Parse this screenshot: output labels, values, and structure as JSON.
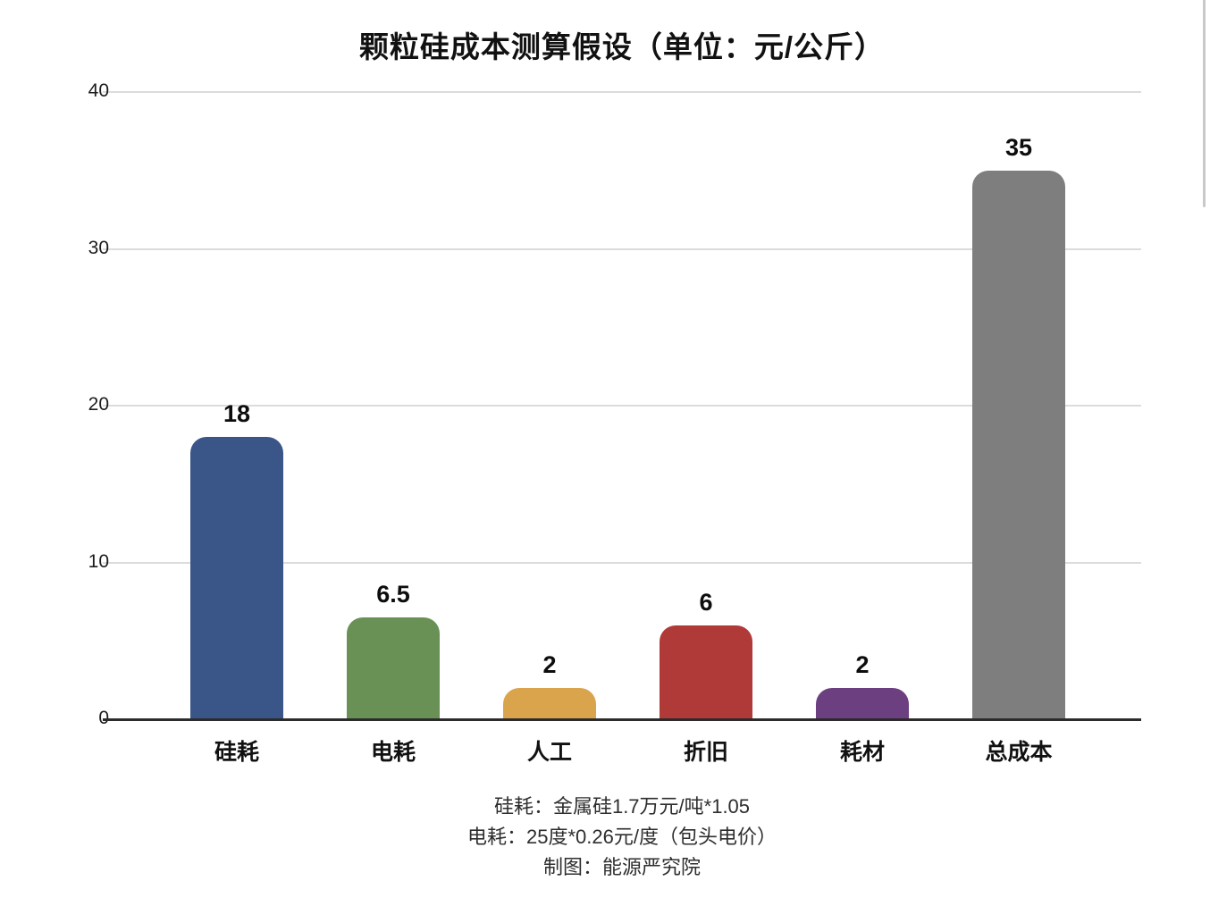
{
  "page": {
    "background": "#ffffff"
  },
  "chart_data": {
    "type": "bar",
    "title": "颗粒硅成本测算假设（单位：元/公斤）",
    "categories": [
      "硅耗",
      "电耗",
      "人工",
      "折旧",
      "耗材",
      "总成本"
    ],
    "values": [
      18,
      6.5,
      2,
      6,
      2,
      35
    ],
    "value_labels": [
      "18",
      "6.5",
      "2",
      "6",
      "2",
      "35"
    ],
    "bar_colors": [
      "#3A5588",
      "#699155",
      "#DAA44D",
      "#AF3A38",
      "#6C3F80",
      "#7E7E7E"
    ],
    "xlabel": "",
    "ylabel": "",
    "ylim": [
      0,
      40
    ],
    "yticks": [
      0,
      10,
      20,
      30,
      40
    ],
    "grid": true,
    "legend_position": "none",
    "footnotes": [
      "硅耗：金属硅1.7万元/吨*1.05",
      "电耗：25度*0.26元/度（包头电价）",
      "制图：能源严究院"
    ]
  }
}
